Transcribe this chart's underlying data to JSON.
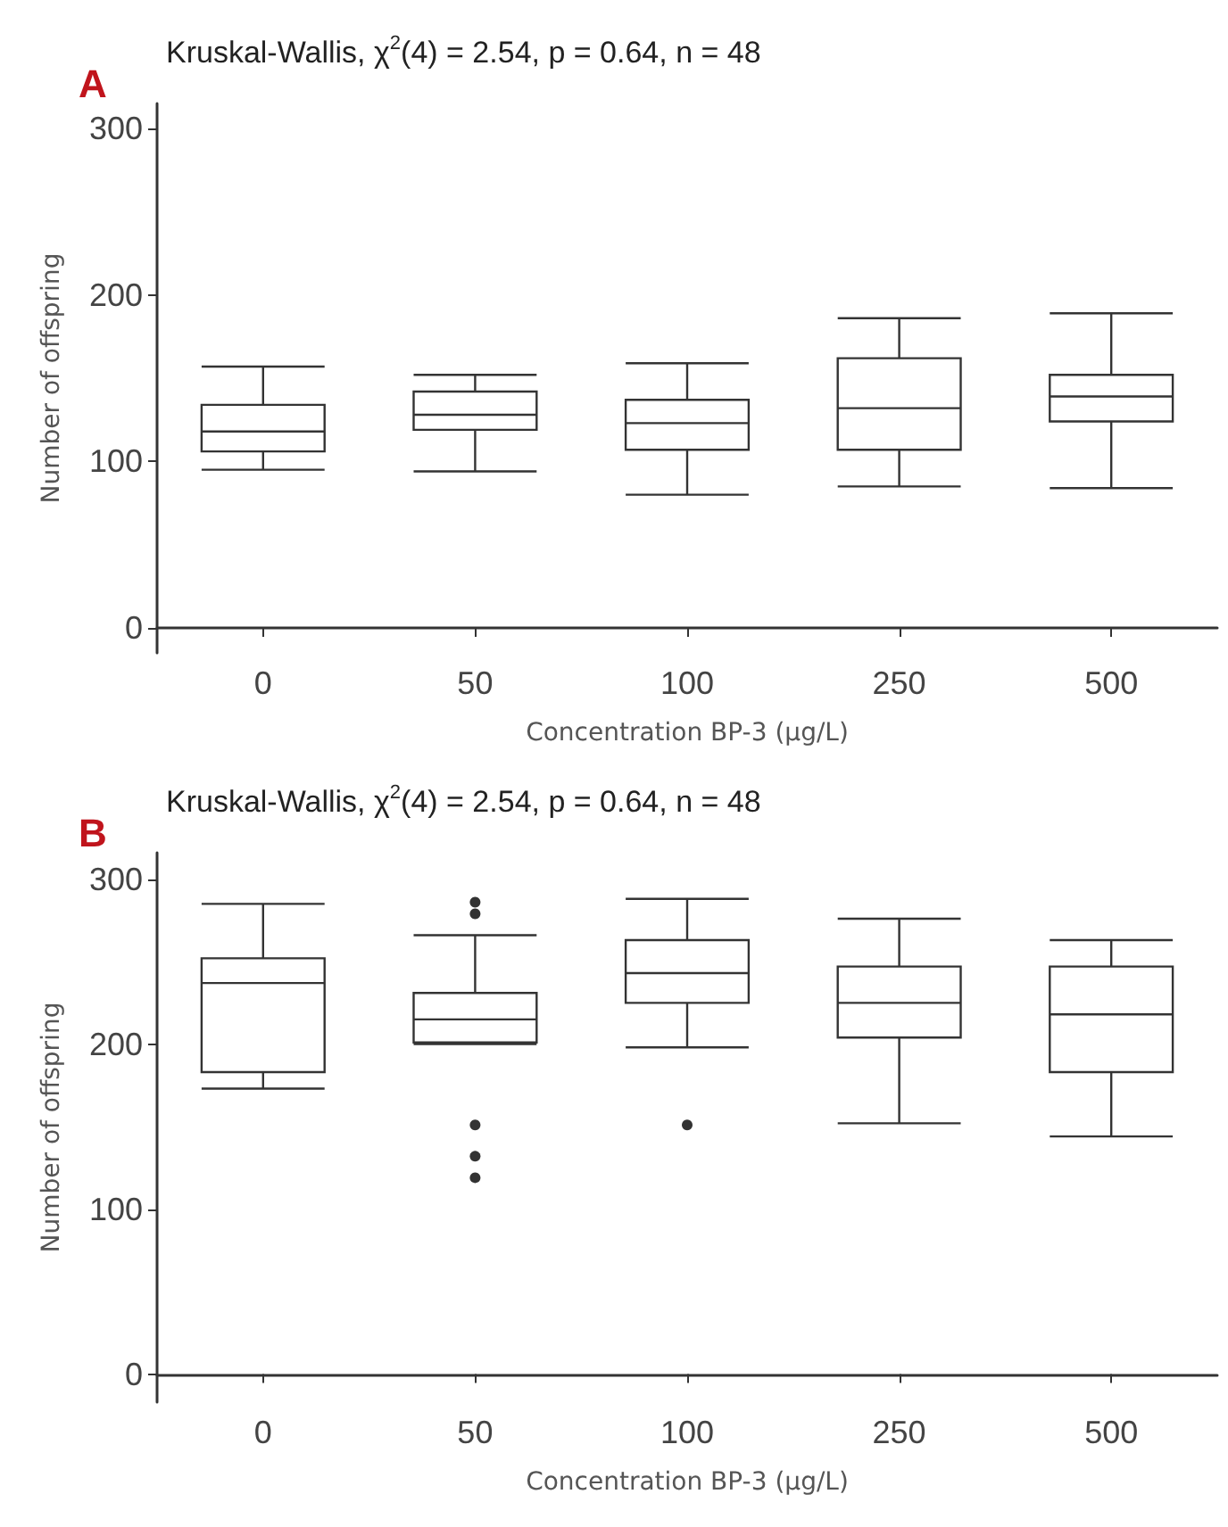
{
  "chart_data": [
    {
      "type": "box",
      "title": "Kruskal-Wallis, χ$^{2}$(4) = 2.54, p = 0.64, n = 48",
      "annotations": [
        "A"
      ],
      "xlabel": "Concentration BP-3 (μg/L)",
      "ylabel": "Number of offspring",
      "categories": [
        "0",
        "50",
        "100",
        "250",
        "500"
      ],
      "ylim": [
        -15,
        315
      ],
      "yticks": [
        0,
        100,
        200,
        300
      ],
      "grid": false,
      "boxes": [
        {
          "low": 95,
          "q1": 106,
          "median": 118,
          "q3": 134,
          "high": 157
        },
        {
          "low": 94,
          "q1": 119,
          "median": 128,
          "q3": 142,
          "high": 152
        },
        {
          "low": 80,
          "q1": 107,
          "median": 123,
          "q3": 137,
          "high": 159
        },
        {
          "low": 85,
          "q1": 107,
          "median": 132,
          "q3": 162,
          "high": 186
        },
        {
          "low": 84,
          "q1": 124,
          "median": 139,
          "q3": 152,
          "high": 189
        }
      ]
    },
    {
      "type": "box",
      "title": "Kruskal-Wallis, χ$^{2}$(4) = 2.54, p = 0.64, n = 48",
      "annotations": [
        "B"
      ],
      "xlabel": "Concentration BP-3 (μg/L)",
      "ylabel": "Number of offspring",
      "categories": [
        "0",
        "50",
        "100",
        "250",
        "500"
      ],
      "ylim": [
        -17,
        316
      ],
      "yticks": [
        0,
        100,
        200,
        300
      ],
      "grid": false,
      "boxes": [
        {
          "low": 173,
          "q1": 183,
          "median": 237,
          "q3": 252,
          "high": 285
        },
        {
          "low": 200,
          "q1": 201,
          "median": 215,
          "q3": 231,
          "high": 266,
          "outliers": [
            286,
            279,
            151,
            132,
            119
          ]
        },
        {
          "low": 198,
          "q1": 225,
          "median": 243,
          "q3": 263,
          "high": 288,
          "outliers": [
            151
          ]
        },
        {
          "low": 152,
          "q1": 204,
          "median": 225,
          "q3": 247,
          "high": 276
        },
        {
          "low": 144,
          "q1": 183,
          "median": 218,
          "q3": 247,
          "high": 263
        }
      ]
    }
  ]
}
